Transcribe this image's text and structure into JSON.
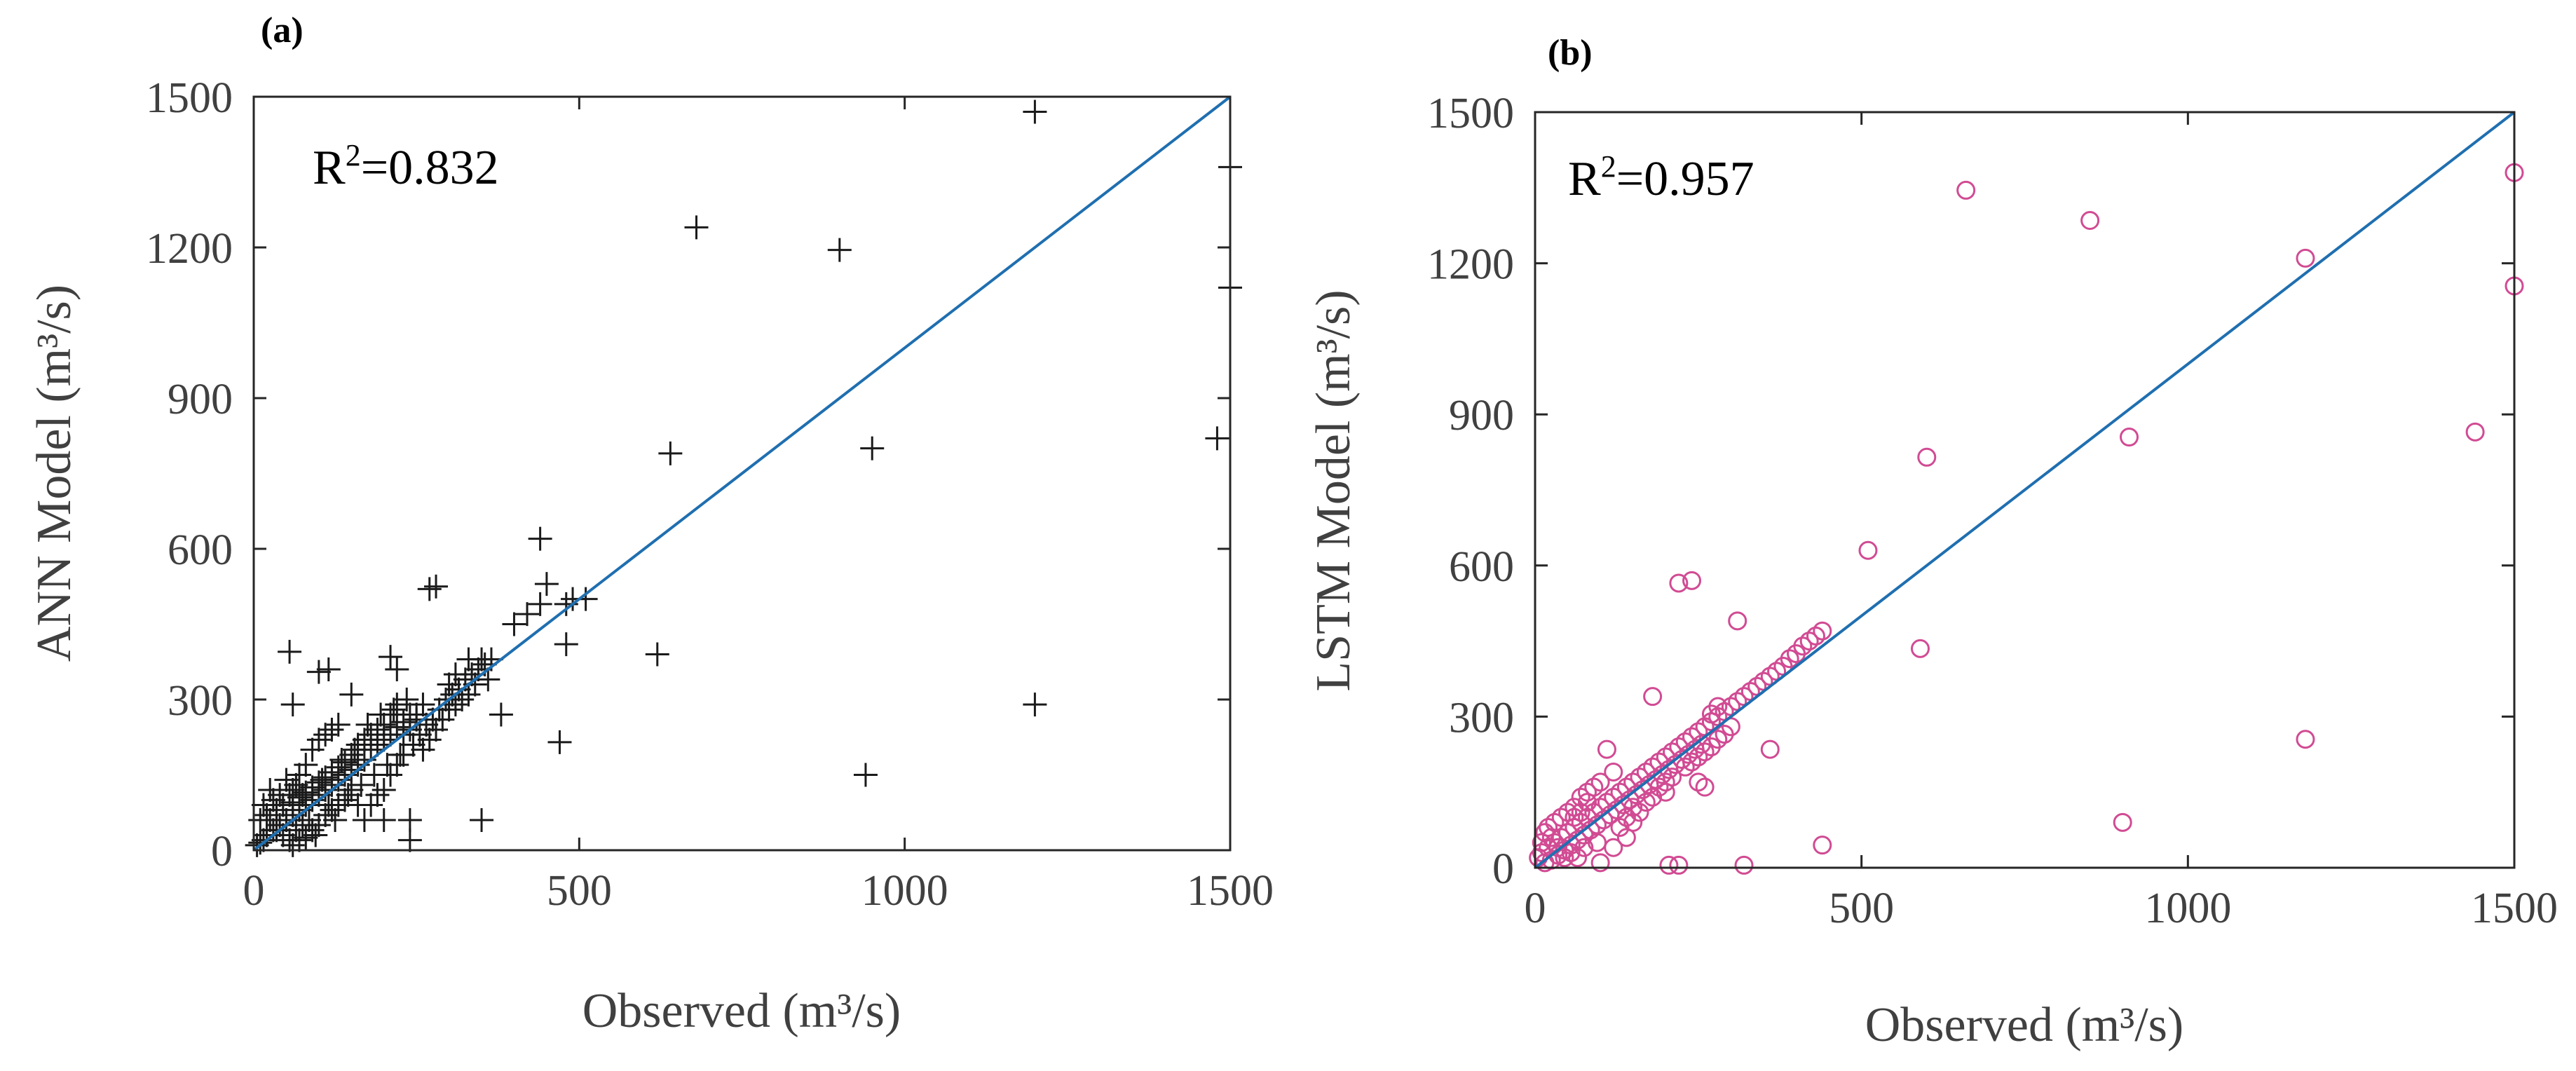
{
  "chart_data": [
    {
      "type": "scatter",
      "panel_label": "(a)",
      "xlabel": "Observed (m³/s)",
      "ylabel": "ANN Model (m³/s)",
      "xlim": [
        0,
        1500
      ],
      "ylim": [
        0,
        1500
      ],
      "xticks": [
        0,
        500,
        1000,
        1500
      ],
      "yticks": [
        0,
        300,
        600,
        900,
        1200,
        1500
      ],
      "xtick_labels": [
        "0",
        "500",
        "1000",
        "1500"
      ],
      "ytick_labels": [
        "0",
        "300",
        "600",
        "900",
        "1200",
        "1500"
      ],
      "annotation": "R²=0.832",
      "r2_prefix": "R",
      "r2_sup": "2",
      "r2_value": "=0.832",
      "marker": "plus",
      "marker_color": "#1a1a1a",
      "line_color": "#1f6fb0",
      "fit_line": [
        [
          0,
          0
        ],
        [
          1500,
          1500
        ]
      ],
      "points": [
        [
          1200,
          1470
        ],
        [
          1500,
          1360
        ],
        [
          1500,
          1120
        ],
        [
          1480,
          820
        ],
        [
          680,
          1240
        ],
        [
          900,
          1195
        ],
        [
          640,
          790
        ],
        [
          950,
          800
        ],
        [
          1200,
          290
        ],
        [
          940,
          150
        ],
        [
          620,
          390
        ],
        [
          470,
          215
        ],
        [
          480,
          410
        ],
        [
          510,
          500
        ],
        [
          480,
          490
        ],
        [
          440,
          620
        ],
        [
          450,
          530
        ],
        [
          350,
          60
        ],
        [
          240,
          20
        ],
        [
          55,
          395
        ],
        [
          60,
          290
        ],
        [
          100,
          355
        ],
        [
          115,
          360
        ],
        [
          150,
          310
        ],
        [
          210,
          385
        ],
        [
          220,
          360
        ],
        [
          270,
          520
        ],
        [
          280,
          525
        ],
        [
          350,
          380
        ],
        [
          380,
          270
        ],
        [
          330,
          380
        ],
        [
          400,
          450
        ],
        [
          420,
          470
        ],
        [
          440,
          490
        ],
        [
          490,
          500
        ],
        [
          300,
          330
        ],
        [
          310,
          350
        ],
        [
          250,
          270
        ],
        [
          260,
          290
        ],
        [
          200,
          220
        ],
        [
          210,
          230
        ],
        [
          220,
          245
        ],
        [
          230,
          255
        ],
        [
          240,
          270
        ],
        [
          180,
          200
        ],
        [
          190,
          210
        ],
        [
          170,
          180
        ],
        [
          160,
          170
        ],
        [
          150,
          160
        ],
        [
          140,
          150
        ],
        [
          130,
          140
        ],
        [
          120,
          130
        ],
        [
          110,
          120
        ],
        [
          100,
          110
        ],
        [
          90,
          100
        ],
        [
          80,
          90
        ],
        [
          70,
          80
        ],
        [
          60,
          70
        ],
        [
          50,
          60
        ],
        [
          40,
          50
        ],
        [
          30,
          40
        ],
        [
          20,
          30
        ],
        [
          15,
          20
        ],
        [
          10,
          15
        ],
        [
          5,
          10
        ],
        [
          25,
          60
        ],
        [
          35,
          80
        ],
        [
          45,
          30
        ],
        [
          55,
          20
        ],
        [
          65,
          40
        ],
        [
          75,
          110
        ],
        [
          85,
          60
        ],
        [
          95,
          30
        ],
        [
          105,
          140
        ],
        [
          115,
          90
        ],
        [
          125,
          60
        ],
        [
          135,
          180
        ],
        [
          145,
          110
        ],
        [
          155,
          200
        ],
        [
          165,
          130
        ],
        [
          175,
          250
        ],
        [
          185,
          150
        ],
        [
          195,
          270
        ],
        [
          205,
          170
        ],
        [
          215,
          280
        ],
        [
          225,
          190
        ],
        [
          235,
          300
        ],
        [
          245,
          210
        ],
        [
          255,
          230
        ],
        [
          265,
          250
        ],
        [
          275,
          260
        ],
        [
          285,
          280
        ],
        [
          295,
          300
        ],
        [
          305,
          310
        ],
        [
          315,
          320
        ],
        [
          325,
          340
        ],
        [
          335,
          350
        ],
        [
          345,
          360
        ],
        [
          355,
          370
        ],
        [
          365,
          380
        ],
        [
          40,
          110
        ],
        [
          50,
          140
        ],
        [
          60,
          120
        ],
        [
          70,
          150
        ],
        [
          80,
          170
        ],
        [
          90,
          200
        ],
        [
          100,
          220
        ],
        [
          110,
          230
        ],
        [
          120,
          240
        ],
        [
          130,
          250
        ],
        [
          60,
          10
        ],
        [
          70,
          20
        ],
        [
          80,
          25
        ],
        [
          90,
          40
        ],
        [
          100,
          50
        ],
        [
          110,
          70
        ],
        [
          120,
          80
        ],
        [
          130,
          90
        ],
        [
          140,
          100
        ],
        [
          150,
          120
        ],
        [
          180,
          90
        ],
        [
          190,
          110
        ],
        [
          200,
          120
        ],
        [
          210,
          150
        ],
        [
          220,
          170
        ],
        [
          230,
          190
        ],
        [
          240,
          60
        ],
        [
          200,
          60
        ],
        [
          160,
          90
        ],
        [
          170,
          60
        ],
        [
          20,
          70
        ],
        [
          30,
          100
        ],
        [
          10,
          60
        ],
        [
          15,
          90
        ],
        [
          25,
          120
        ],
        [
          35,
          40
        ],
        [
          45,
          90
        ],
        [
          55,
          110
        ],
        [
          65,
          130
        ],
        [
          75,
          50
        ],
        [
          260,
          200
        ],
        [
          270,
          220
        ],
        [
          280,
          240
        ],
        [
          290,
          260
        ],
        [
          300,
          280
        ],
        [
          310,
          290
        ],
        [
          320,
          300
        ],
        [
          330,
          310
        ],
        [
          340,
          330
        ],
        [
          360,
          340
        ],
        [
          200,
          250
        ],
        [
          210,
          270
        ],
        [
          220,
          290
        ],
        [
          230,
          230
        ],
        [
          240,
          240
        ],
        [
          250,
          260
        ],
        [
          190,
          240
        ],
        [
          180,
          230
        ],
        [
          170,
          220
        ],
        [
          160,
          210
        ],
        [
          150,
          190
        ],
        [
          140,
          175
        ],
        [
          130,
          165
        ],
        [
          120,
          155
        ],
        [
          110,
          145
        ],
        [
          100,
          135
        ],
        [
          90,
          125
        ],
        [
          80,
          115
        ],
        [
          70,
          105
        ],
        [
          60,
          95
        ]
      ]
    },
    {
      "type": "scatter",
      "panel_label": "(b)",
      "xlabel": "Observed (m³/s)",
      "ylabel": "LSTM Model (m³/s)",
      "xlim": [
        0,
        1500
      ],
      "ylim": [
        0,
        1500
      ],
      "xticks": [
        0,
        500,
        1000,
        1500
      ],
      "yticks": [
        0,
        300,
        600,
        900,
        1200,
        1500
      ],
      "xtick_labels": [
        "0",
        "500",
        "1000",
        "1500"
      ],
      "ytick_labels": [
        "0",
        "300",
        "600",
        "900",
        "1200",
        "1500"
      ],
      "annotation": "R²=0.957",
      "r2_prefix": "R",
      "r2_sup": "2",
      "r2_value": "=0.957",
      "marker": "circle",
      "marker_color": "#d14b93",
      "line_color": "#1f6fb0",
      "fit_line": [
        [
          0,
          0
        ],
        [
          1500,
          1500
        ]
      ],
      "points": [
        [
          660,
          1345
        ],
        [
          850,
          1285
        ],
        [
          1500,
          1380
        ],
        [
          1500,
          1155
        ],
        [
          1180,
          1210
        ],
        [
          1440,
          865
        ],
        [
          910,
          855
        ],
        [
          600,
          815
        ],
        [
          510,
          630
        ],
        [
          590,
          435
        ],
        [
          1180,
          255
        ],
        [
          900,
          90
        ],
        [
          440,
          45
        ],
        [
          320,
          5
        ],
        [
          310,
          490
        ],
        [
          220,
          565
        ],
        [
          240,
          570
        ],
        [
          360,
          235
        ],
        [
          220,
          5
        ],
        [
          205,
          5
        ],
        [
          180,
          340
        ],
        [
          200,
          150
        ],
        [
          250,
          170
        ],
        [
          260,
          160
        ],
        [
          150,
          120
        ],
        [
          140,
          60
        ],
        [
          100,
          10
        ],
        [
          95,
          50
        ],
        [
          120,
          190
        ],
        [
          110,
          235
        ],
        [
          440,
          470
        ],
        [
          430,
          460
        ],
        [
          420,
          450
        ],
        [
          410,
          440
        ],
        [
          400,
          425
        ],
        [
          390,
          415
        ],
        [
          380,
          400
        ],
        [
          370,
          390
        ],
        [
          360,
          380
        ],
        [
          350,
          370
        ],
        [
          340,
          360
        ],
        [
          330,
          350
        ],
        [
          320,
          340
        ],
        [
          310,
          330
        ],
        [
          300,
          320
        ],
        [
          290,
          310
        ],
        [
          280,
          300
        ],
        [
          270,
          290
        ],
        [
          260,
          280
        ],
        [
          250,
          270
        ],
        [
          240,
          260
        ],
        [
          230,
          250
        ],
        [
          220,
          240
        ],
        [
          210,
          230
        ],
        [
          200,
          220
        ],
        [
          190,
          210
        ],
        [
          180,
          200
        ],
        [
          170,
          190
        ],
        [
          160,
          180
        ],
        [
          150,
          170
        ],
        [
          140,
          160
        ],
        [
          130,
          150
        ],
        [
          120,
          140
        ],
        [
          110,
          130
        ],
        [
          100,
          120
        ],
        [
          90,
          110
        ],
        [
          80,
          100
        ],
        [
          70,
          90
        ],
        [
          60,
          80
        ],
        [
          50,
          70
        ],
        [
          40,
          60
        ],
        [
          30,
          50
        ],
        [
          20,
          40
        ],
        [
          10,
          30
        ],
        [
          5,
          20
        ],
        [
          15,
          10
        ],
        [
          25,
          15
        ],
        [
          35,
          25
        ],
        [
          45,
          35
        ],
        [
          55,
          45
        ],
        [
          65,
          55
        ],
        [
          75,
          65
        ],
        [
          85,
          75
        ],
        [
          95,
          85
        ],
        [
          105,
          95
        ],
        [
          115,
          105
        ],
        [
          125,
          115
        ],
        [
          135,
          125
        ],
        [
          145,
          135
        ],
        [
          155,
          145
        ],
        [
          165,
          155
        ],
        [
          175,
          165
        ],
        [
          185,
          175
        ],
        [
          195,
          185
        ],
        [
          205,
          195
        ],
        [
          215,
          205
        ],
        [
          225,
          215
        ],
        [
          235,
          225
        ],
        [
          245,
          235
        ],
        [
          255,
          245
        ],
        [
          40,
          100
        ],
        [
          50,
          110
        ],
        [
          60,
          120
        ],
        [
          70,
          140
        ],
        [
          80,
          150
        ],
        [
          90,
          160
        ],
        [
          100,
          170
        ],
        [
          60,
          100
        ],
        [
          70,
          110
        ],
        [
          80,
          130
        ],
        [
          20,
          80
        ],
        [
          30,
          90
        ],
        [
          10,
          50
        ],
        [
          15,
          70
        ],
        [
          25,
          60
        ],
        [
          35,
          40
        ],
        [
          45,
          20
        ],
        [
          55,
          30
        ],
        [
          65,
          20
        ],
        [
          75,
          40
        ],
        [
          120,
          40
        ],
        [
          130,
          80
        ],
        [
          140,
          100
        ],
        [
          150,
          90
        ],
        [
          160,
          110
        ],
        [
          170,
          130
        ],
        [
          180,
          140
        ],
        [
          190,
          160
        ],
        [
          200,
          170
        ],
        [
          210,
          180
        ],
        [
          230,
          200
        ],
        [
          240,
          210
        ],
        [
          250,
          220
        ],
        [
          260,
          230
        ],
        [
          270,
          240
        ],
        [
          280,
          255
        ],
        [
          290,
          265
        ],
        [
          300,
          280
        ],
        [
          270,
          305
        ],
        [
          280,
          320
        ]
      ]
    }
  ]
}
